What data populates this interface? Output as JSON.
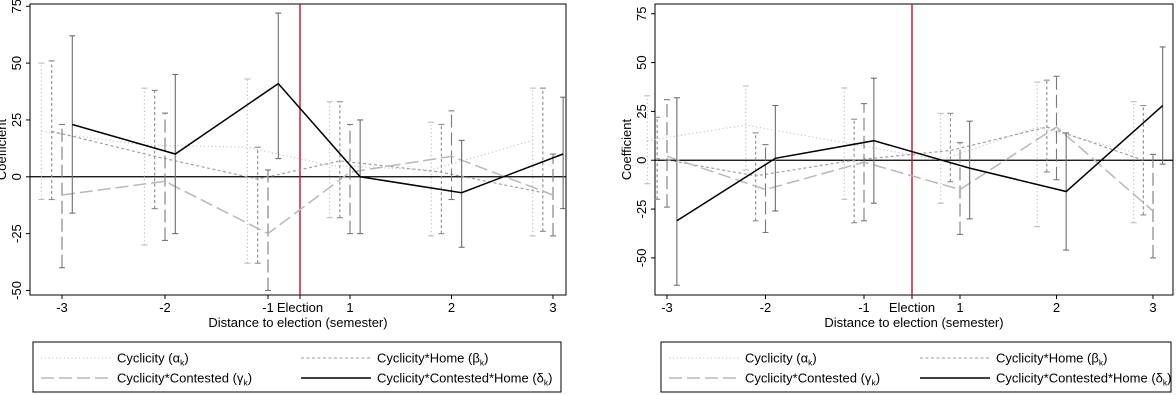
{
  "chart_data": [
    {
      "type": "line",
      "xlabel": "Distance to election (semester)",
      "ylabel": "Coefficient",
      "x_ticks": [
        "-3",
        "-2",
        "-1",
        "1",
        "2",
        "3"
      ],
      "event_label": "Election",
      "ylim": [
        -52,
        76
      ],
      "y_ticks": [
        -50,
        -25,
        0,
        25,
        50,
        75
      ],
      "y_tick_labels": [
        "-50",
        "-25",
        "0",
        "25",
        "50",
        "75"
      ],
      "reference_line_y": 0,
      "grid": false,
      "legend_position": "bottom",
      "series": [
        {
          "name": "Cyclicity (α",
          "name_subscript": "k",
          "name_suffix": ")",
          "style": "dotted",
          "x": [
            -3.2,
            -2.2,
            -1.2,
            0.8,
            1.8,
            2.8
          ],
          "values": [
            20,
            14,
            13,
            5,
            3,
            16
          ],
          "ci_low": [
            -10,
            -30,
            -38,
            -18,
            -26,
            -26
          ],
          "ci_high": [
            50,
            39,
            43,
            33,
            24,
            39
          ]
        },
        {
          "name": "Cyclicity*Home (β",
          "name_subscript": "k",
          "name_suffix": ")",
          "style": "short-dash",
          "x": [
            -3.1,
            -2.1,
            -1.1,
            0.9,
            1.9,
            2.9
          ],
          "values": [
            20,
            9,
            -1,
            7,
            2,
            -7
          ],
          "ci_low": [
            -10,
            -14,
            -38,
            -18,
            -25,
            -24
          ],
          "ci_high": [
            51,
            38,
            13,
            33,
            23,
            39
          ]
        },
        {
          "name": "Cyclicity*Contested (γ",
          "name_subscript": "k",
          "name_suffix": ")",
          "style": "long-dash",
          "x": [
            -3.0,
            -2.0,
            -1.0,
            1.0,
            2.0,
            3.0
          ],
          "values": [
            -8,
            -2,
            -25,
            2,
            9,
            -8
          ],
          "ci_low": [
            -40,
            -28,
            -50,
            -25,
            -10,
            -26
          ],
          "ci_high": [
            23,
            28,
            3,
            23,
            29,
            10
          ]
        },
        {
          "name": "Cyclicity*Contested*Home (δ",
          "name_subscript": "k",
          "name_suffix": ")",
          "style": "solid",
          "x": [
            -2.9,
            -1.9,
            -0.9,
            1.1,
            2.1,
            3.1
          ],
          "values": [
            23,
            10,
            41,
            0,
            -7,
            10
          ],
          "ci_low": [
            -16,
            -25,
            8,
            -25,
            -31,
            -14
          ],
          "ci_high": [
            62,
            45,
            72,
            25,
            16,
            35
          ]
        }
      ]
    },
    {
      "type": "line",
      "xlabel": "Distance to election (semester)",
      "ylabel": "Coefficient",
      "x_ticks": [
        "-3",
        "-2",
        "-1",
        "1",
        "2",
        "3"
      ],
      "event_label": "Election",
      "ylim": [
        -69,
        80
      ],
      "y_ticks": [
        -50,
        -25,
        0,
        25,
        50,
        75
      ],
      "y_tick_labels": [
        "-50",
        "-25",
        "0",
        "25",
        "50",
        "75"
      ],
      "reference_line_y": 0,
      "grid": false,
      "legend_position": "bottom",
      "series": [
        {
          "name": "Cyclicity (α",
          "name_subscript": "k",
          "name_suffix": ")",
          "style": "dotted",
          "x": [
            -3.2,
            -2.2,
            -1.2,
            0.8,
            1.8,
            2.8
          ],
          "values": [
            10,
            18,
            9,
            0,
            17,
            4
          ],
          "ci_low": [
            -12,
            -5,
            -20,
            -22,
            -34,
            -32
          ],
          "ci_high": [
            33,
            38,
            37,
            24,
            40,
            30
          ]
        },
        {
          "name": "Cyclicity*Home (β",
          "name_subscript": "k",
          "name_suffix": ")",
          "style": "short-dash",
          "x": [
            -3.1,
            -2.1,
            -1.1,
            0.9,
            1.9,
            2.9
          ],
          "values": [
            1,
            -8,
            0,
            5,
            17,
            0
          ],
          "ci_low": [
            -20,
            -31,
            -32,
            -11,
            -6,
            -28
          ],
          "ci_high": [
            22,
            14,
            21,
            24,
            41,
            28
          ]
        },
        {
          "name": "Cyclicity*Contested (γ",
          "name_subscript": "k",
          "name_suffix": ")",
          "style": "long-dash",
          "x": [
            -3.0,
            -2.0,
            -1.0,
            1.0,
            2.0,
            3.0
          ],
          "values": [
            2,
            -15,
            -1,
            -15,
            17,
            -26
          ],
          "ci_low": [
            -24,
            -37,
            -31,
            -38,
            -10,
            -50
          ],
          "ci_high": [
            31,
            8,
            29,
            9,
            43,
            3
          ]
        },
        {
          "name": "Cyclicity*Contested*Home (δ",
          "name_subscript": "k",
          "name_suffix": ")",
          "style": "solid",
          "x": [
            -2.9,
            -1.9,
            -0.9,
            1.1,
            2.1,
            3.1
          ],
          "values": [
            -31,
            1,
            10,
            -4,
            -16,
            28
          ],
          "ci_low": [
            -64,
            -26,
            -22,
            -30,
            -46,
            -2
          ],
          "ci_high": [
            32,
            28,
            42,
            20,
            14,
            58
          ]
        }
      ]
    }
  ]
}
